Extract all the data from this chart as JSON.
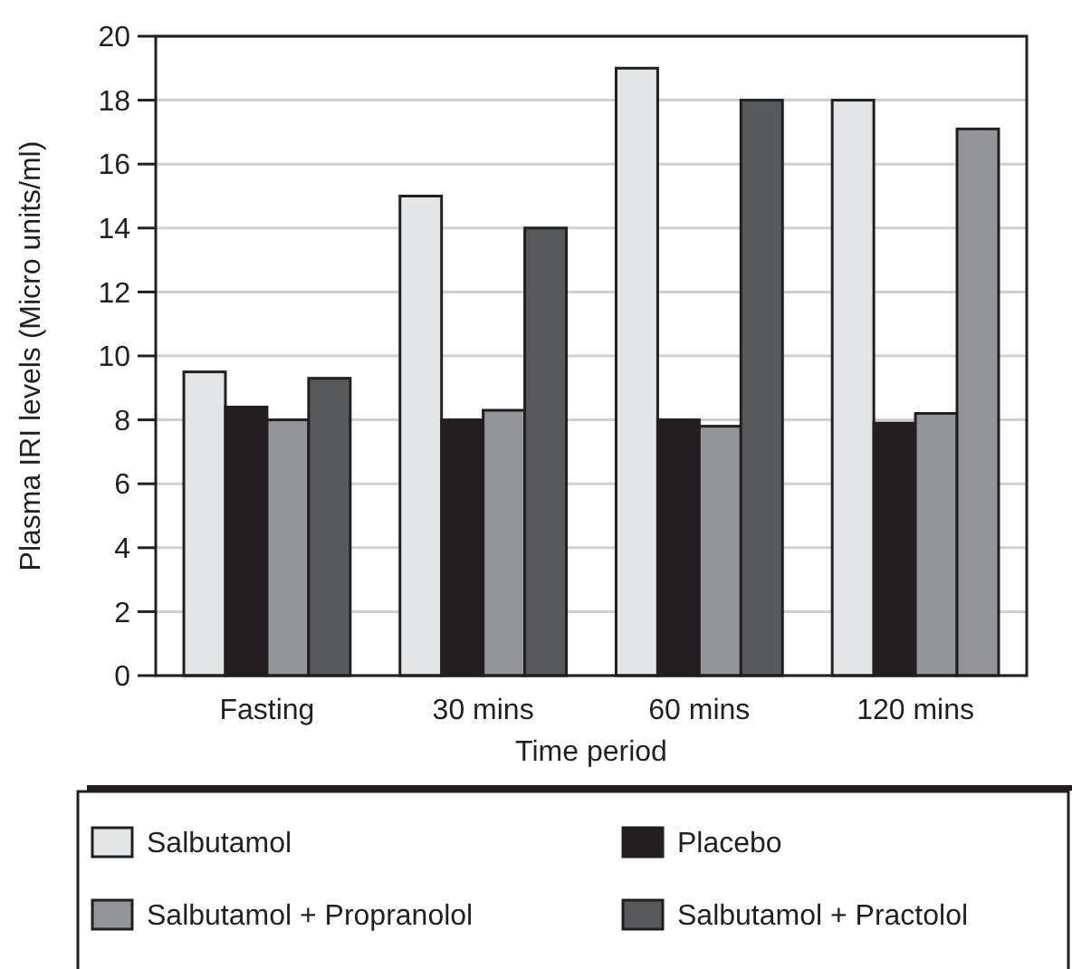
{
  "chart_data": {
    "type": "bar",
    "xlabel": "Time period",
    "ylabel": "Plasma IRI levels (Micro units/ml)",
    "categories": [
      "Fasting",
      "30 mins",
      "60 mins",
      "120 mins"
    ],
    "series": [
      {
        "name": "Salbutamol",
        "color": "#e4e5e7",
        "values": [
          9.5,
          15,
          19,
          18
        ]
      },
      {
        "name": "Placebo",
        "color": "#231f20",
        "values": [
          8.4,
          8,
          8,
          7.9
        ]
      },
      {
        "name": "Salbutamol + Propranolol",
        "color": "#939598",
        "values": [
          8,
          8.3,
          7.8,
          8.2
        ]
      },
      {
        "name": "Salbutamol + Practolol",
        "color": "#58595b",
        "colors": [
          "#58595b",
          "#58595b",
          "#58595b",
          "#939598"
        ],
        "values": [
          9.3,
          14,
          18,
          17.1
        ]
      }
    ],
    "ylim": [
      0,
      20
    ],
    "yticks": [
      0,
      2,
      4,
      6,
      8,
      10,
      12,
      14,
      16,
      18,
      20
    ],
    "grid": "y",
    "legend": "bottom"
  }
}
